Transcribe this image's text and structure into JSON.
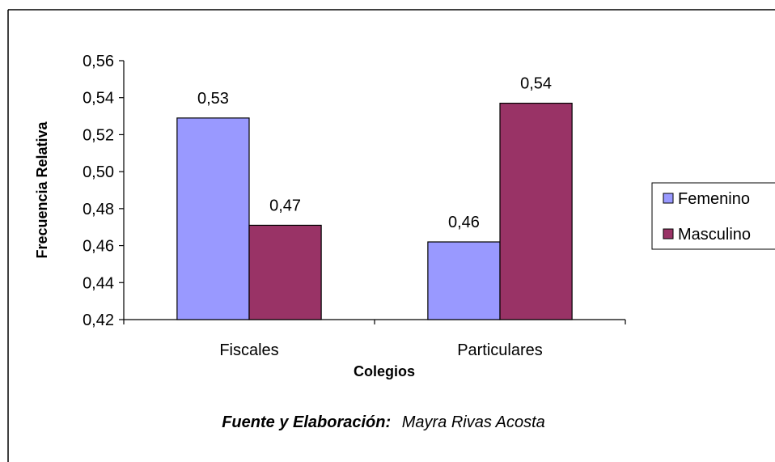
{
  "chart_data": {
    "type": "bar",
    "categories": [
      "Fiscales",
      "Particulares"
    ],
    "series": [
      {
        "name": "Femenino",
        "values": [
          0.529,
          0.462
        ],
        "labels": [
          "0,53",
          "0,46"
        ],
        "color": "#9999ff"
      },
      {
        "name": "Masculino",
        "values": [
          0.471,
          0.537
        ],
        "labels": [
          "0,47",
          "0,54"
        ],
        "color": "#993366"
      }
    ],
    "title": "",
    "xlabel": "Colegios",
    "ylabel": "Frecuencia Relativa",
    "ylim": [
      0.42,
      0.56
    ],
    "yticks": [
      0.42,
      0.44,
      0.46,
      0.48,
      0.5,
      0.52,
      0.54,
      0.56
    ],
    "ytick_labels": [
      "0,42",
      "0,44",
      "0,46",
      "0,48",
      "0,50",
      "0,52",
      "0,54",
      "0,56"
    ],
    "grid": false,
    "legend_position": "right"
  },
  "source": {
    "label": "Fuente y Elaboración:",
    "author": "Mayra Rivas Acosta"
  }
}
